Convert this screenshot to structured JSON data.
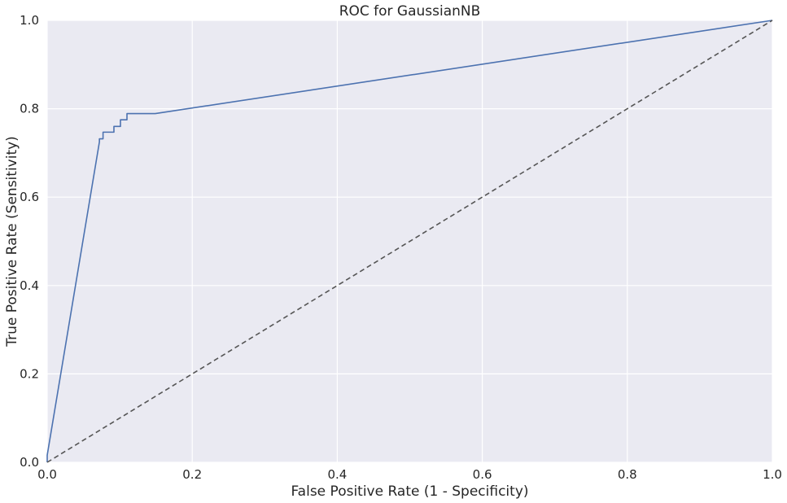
{
  "chart_data": {
    "type": "line",
    "title": "ROC for GaussianNB",
    "xlabel": "False Positive Rate (1 - Specificity)",
    "ylabel": "True Positive Rate (Sensitivity)",
    "xlim": [
      0,
      1
    ],
    "ylim": [
      0,
      1
    ],
    "xticks": [
      "0.0",
      "0.2",
      "0.4",
      "0.6",
      "0.8",
      "1.0"
    ],
    "yticks": [
      "0.0",
      "0.2",
      "0.4",
      "0.6",
      "0.8",
      "1.0"
    ],
    "grid": true,
    "legend": false,
    "background_color": "#eaeaf2",
    "series": [
      {
        "color": "#4c72b0",
        "style": "solid",
        "x": [
          0.0,
          0.0,
          0.072,
          0.072,
          0.077,
          0.077,
          0.092,
          0.092,
          0.101,
          0.101,
          0.11,
          0.11,
          0.149,
          1.0
        ],
        "y": [
          0.0,
          0.016,
          0.725,
          0.732,
          0.732,
          0.747,
          0.747,
          0.76,
          0.76,
          0.775,
          0.775,
          0.789,
          0.789,
          1.0
        ]
      },
      {
        "color": "#555555",
        "style": "dashed",
        "x": [
          0,
          1
        ],
        "y": [
          0,
          1
        ]
      }
    ]
  }
}
